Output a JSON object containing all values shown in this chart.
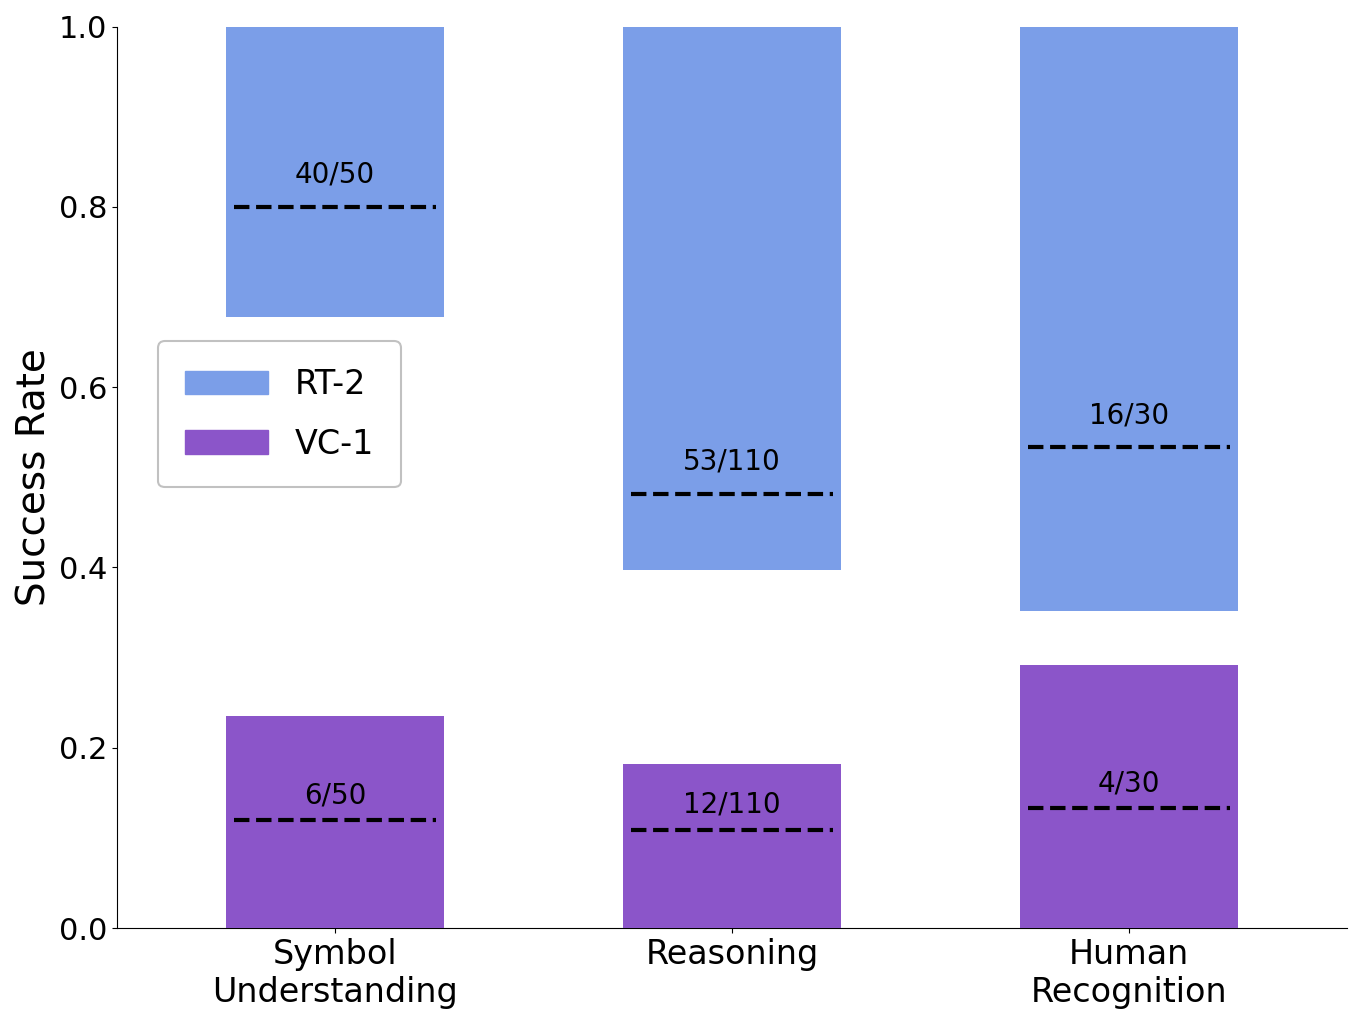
{
  "categories": [
    "Symbol\nUnderstanding",
    "Reasoning",
    "Human\nRecognition"
  ],
  "rt2": {
    "ci_low": [
      0.678,
      0.397,
      0.352
    ],
    "ci_high": [
      1.0,
      1.0,
      1.0
    ],
    "point": [
      0.8,
      0.4818,
      0.5333
    ],
    "label": [
      "40/50",
      "53/110",
      "16/30"
    ],
    "color": "#7b9ee8"
  },
  "vc1": {
    "ci_low": [
      0.0,
      0.0,
      0.0
    ],
    "ci_high": [
      0.235,
      0.182,
      0.292
    ],
    "point": [
      0.12,
      0.1091,
      0.1333
    ],
    "label": [
      "6/50",
      "12/110",
      "4/30"
    ],
    "color": "#8b55c9"
  },
  "ylabel": "Success Rate",
  "ylim": [
    0.0,
    1.0
  ],
  "bar_width": 0.55,
  "legend_labels": [
    "RT-2",
    "VC-1"
  ],
  "legend_colors": [
    "#7b9ee8",
    "#8b55c9"
  ]
}
